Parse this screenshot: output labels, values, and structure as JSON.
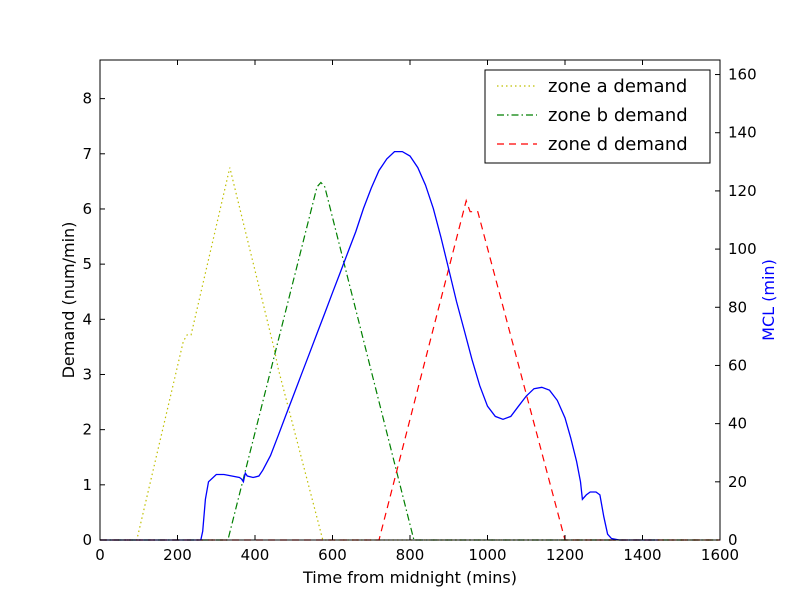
{
  "chart_data": {
    "type": "line",
    "xlabel": "Time from midnight (mins)",
    "ylabel": "Demand (num/min)",
    "y2label": "MCL (min)",
    "xlim": [
      0,
      1600
    ],
    "ylim": [
      0,
      8.7
    ],
    "y2lim": [
      0,
      165
    ],
    "xticks": [
      0,
      200,
      400,
      600,
      800,
      1000,
      1200,
      1400,
      1600
    ],
    "yticks": [
      0,
      1,
      2,
      3,
      4,
      5,
      6,
      7,
      8
    ],
    "y2ticks": [
      0,
      20,
      40,
      60,
      80,
      100,
      120,
      140,
      160
    ],
    "grid": false,
    "legend_position": "top-right",
    "series": [
      {
        "name": "zone a demand",
        "axis": "left",
        "color": "#bfbf00",
        "style": "dotted",
        "x": [
          0,
          95,
          215,
          225,
          235,
          335,
          450,
          460,
          575,
          1600
        ],
        "y": [
          0,
          0,
          3.6,
          3.72,
          3.72,
          6.75,
          3.45,
          3.1,
          0,
          0
        ]
      },
      {
        "name": "zone b demand",
        "axis": "left",
        "color": "#007f00",
        "style": "dashdot",
        "x": [
          0,
          330,
          560,
          570,
          580,
          810,
          1600
        ],
        "y": [
          0,
          0,
          6.4,
          6.48,
          6.4,
          0,
          0
        ]
      },
      {
        "name": "zone d demand",
        "axis": "left",
        "color": "#ff0000",
        "style": "dashed",
        "x": [
          0,
          720,
          945,
          955,
          975,
          1200,
          1600
        ],
        "y": [
          0,
          0,
          6.15,
          5.95,
          5.95,
          0,
          0
        ]
      },
      {
        "name": "MCL",
        "axis": "right",
        "color": "#0000ff",
        "style": "solid",
        "x": [
          0,
          260,
          265,
          272,
          280,
          300,
          320,
          340,
          360,
          365,
          370,
          375,
          380,
          395,
          410,
          420,
          440,
          460,
          480,
          500,
          520,
          540,
          560,
          580,
          600,
          620,
          640,
          660,
          680,
          700,
          720,
          740,
          760,
          780,
          800,
          820,
          840,
          860,
          880,
          900,
          920,
          940,
          960,
          980,
          1000,
          1020,
          1040,
          1060,
          1080,
          1100,
          1120,
          1140,
          1160,
          1180,
          1200,
          1215,
          1230,
          1240,
          1245,
          1255,
          1265,
          1280,
          1290,
          1300,
          1310,
          1320,
          1340,
          1380,
          1440
        ],
        "y": [
          0,
          0,
          3,
          14,
          20,
          22.5,
          22.5,
          22,
          21.5,
          21,
          20,
          23,
          22,
          21.5,
          22,
          24,
          29,
          36,
          43,
          50,
          57,
          64,
          71,
          78,
          85,
          92,
          99,
          106,
          114,
          121,
          127,
          131,
          133.5,
          133.5,
          132,
          128,
          122,
          114,
          104,
          93,
          82,
          72,
          62,
          53,
          46,
          42.5,
          41.5,
          42.5,
          46,
          49.5,
          52,
          52.5,
          51.5,
          48,
          42,
          35,
          27,
          20,
          14,
          15.5,
          16.5,
          16.5,
          15.5,
          8,
          2,
          0.5,
          0,
          0,
          0
        ]
      }
    ]
  }
}
